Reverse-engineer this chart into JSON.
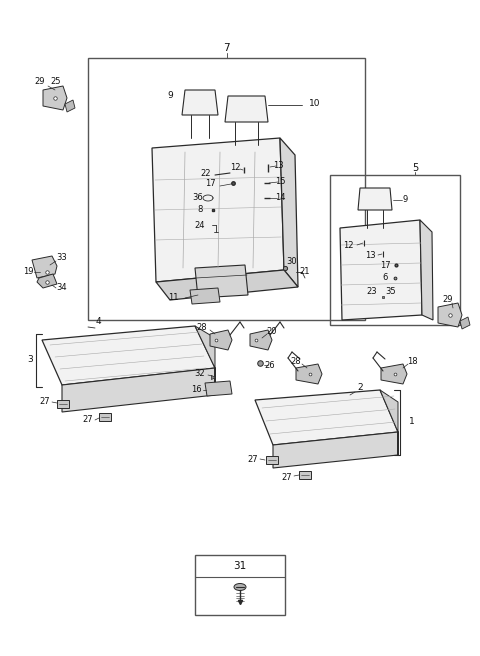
{
  "bg_color": "#ffffff",
  "fig_width": 4.8,
  "fig_height": 6.56,
  "dpi": 100,
  "line_color": "#2a2a2a",
  "fill_color": "#e8e8e8",
  "fill_light": "#f2f2f2"
}
